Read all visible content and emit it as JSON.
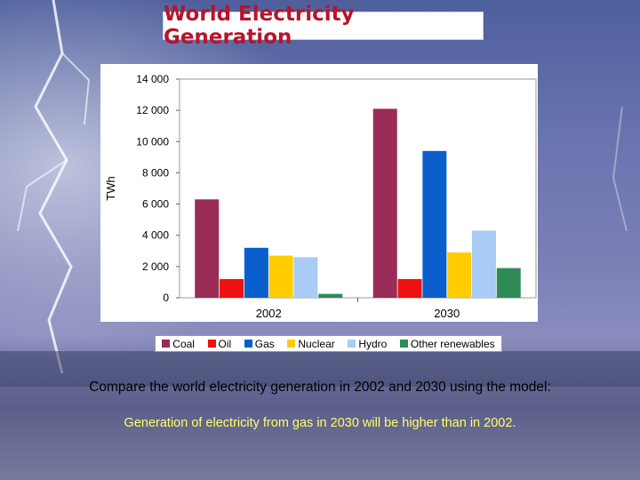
{
  "slide": {
    "title": "World Electricity Generation",
    "caption_question": "Compare the world electricity generation in 2002 and 2030 using the model:",
    "caption_answer": "Generation of electricity from gas in 2030 will be higher than in 2002."
  },
  "chart_data": {
    "type": "bar",
    "title": "",
    "xlabel": "",
    "ylabel": "TWh",
    "categories": [
      "2002",
      "2030"
    ],
    "ylim": [
      0,
      14000
    ],
    "yticks": [
      0,
      2000,
      4000,
      6000,
      8000,
      10000,
      12000,
      14000
    ],
    "ytick_labels": [
      "0",
      "2 000",
      "4 000",
      "6 000",
      "8 000",
      "10 000",
      "12 000",
      "14 000"
    ],
    "grid": false,
    "legend_position": "bottom",
    "series": [
      {
        "name": "Coal",
        "color": "#9b2c57",
        "values": [
          6300,
          12100
        ]
      },
      {
        "name": "Oil",
        "color": "#ee1111",
        "values": [
          1200,
          1200
        ]
      },
      {
        "name": "Gas",
        "color": "#0b5fcc",
        "values": [
          3200,
          9400
        ]
      },
      {
        "name": "Nuclear",
        "color": "#ffcc00",
        "values": [
          2700,
          2900
        ]
      },
      {
        "name": "Hydro",
        "color": "#a8ccf5",
        "values": [
          2600,
          4300
        ]
      },
      {
        "name": "Other renewables",
        "color": "#2e8b57",
        "values": [
          250,
          1900
        ]
      }
    ]
  }
}
